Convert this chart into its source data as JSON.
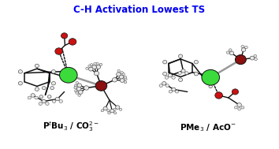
{
  "title": "C-H Activation Lowest TS",
  "title_color": "#0000EE",
  "title_fontsize": 8.5,
  "title_fontweight": "bold",
  "label_left": "P$^t$Bu$_3$ / CO$_3^{2-}$",
  "label_right": "PMe$_3$ / AcO$^{-}$",
  "label_fontsize": 7.5,
  "label_fontweight": "bold",
  "bg_color": "#ffffff",
  "fig_width": 3.54,
  "fig_height": 1.89,
  "pd_color": "#3adb3a",
  "p_color": "#8B1010",
  "o_color": "#CC1111",
  "c_color": "#222222",
  "h_color": "#e8e8e8",
  "bond_color": "#111111"
}
